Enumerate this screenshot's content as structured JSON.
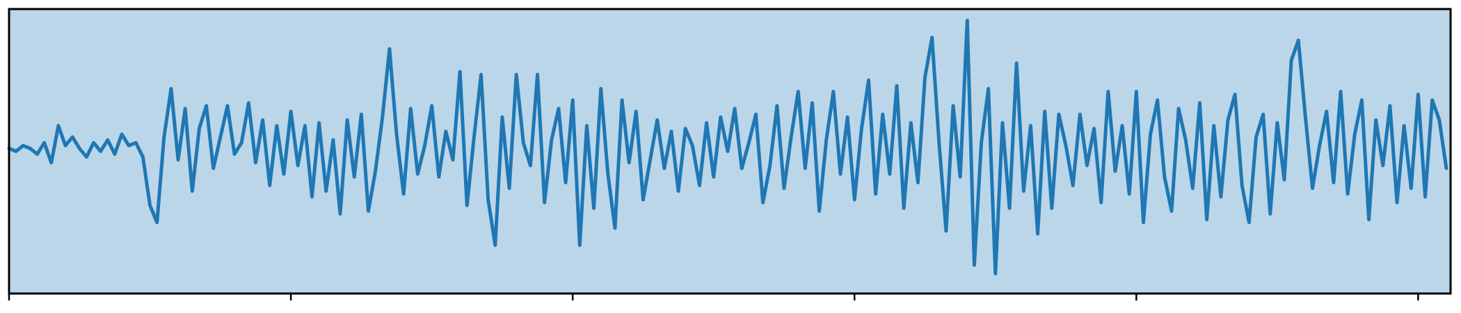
{
  "chart_data": {
    "type": "line",
    "x": [
      0,
      5,
      10,
      15,
      20,
      25,
      30,
      35,
      40,
      45,
      50,
      55,
      60,
      65,
      70,
      75,
      80,
      85,
      90,
      95,
      100,
      105,
      110,
      115,
      120,
      125,
      130,
      135,
      140,
      145,
      150,
      155,
      160,
      165,
      170,
      175,
      180,
      185,
      190,
      195,
      200,
      205,
      210,
      215,
      220,
      225,
      230,
      235,
      240,
      245,
      250,
      255,
      260,
      265,
      270,
      275,
      280,
      285,
      290,
      295,
      300,
      305,
      310,
      315,
      320,
      325,
      330,
      335,
      340,
      345,
      350,
      355,
      360,
      365,
      370,
      375,
      380,
      385,
      390,
      395,
      400,
      405,
      410,
      415,
      420,
      425,
      430,
      435,
      440,
      445,
      450,
      455,
      460,
      465,
      470,
      475,
      480,
      485,
      490,
      495,
      500,
      505,
      510,
      515,
      520,
      525,
      530,
      535,
      540,
      545,
      550,
      555,
      560,
      565,
      570,
      575,
      580,
      585,
      590,
      595,
      600,
      605,
      610,
      615,
      620,
      625,
      630,
      635,
      640,
      645,
      650,
      655,
      660,
      665,
      670,
      675,
      680,
      685,
      690,
      695,
      700,
      705,
      710,
      715,
      720,
      725,
      730,
      735,
      740,
      745,
      750,
      755,
      760,
      765,
      770,
      775,
      780,
      785,
      790,
      795,
      800,
      805,
      810,
      815,
      820,
      825,
      830,
      835,
      840,
      845,
      850,
      855,
      860,
      865,
      870,
      875,
      880,
      885,
      890,
      895,
      900,
      905,
      910,
      915,
      920,
      925,
      930,
      935,
      940,
      945,
      950,
      955,
      960,
      965,
      970,
      975,
      980,
      985,
      990,
      995,
      1000,
      1005,
      1010,
      1015,
      1020
    ],
    "series": [
      {
        "color": "#1f77b4",
        "values": [
          0.1,
          0.0,
          0.2,
          0.1,
          -0.1,
          0.3,
          -0.4,
          0.9,
          0.2,
          0.5,
          0.1,
          -0.2,
          0.3,
          0.0,
          0.4,
          -0.1,
          0.6,
          0.2,
          0.3,
          -0.2,
          -1.9,
          -2.5,
          0.5,
          2.2,
          -0.3,
          1.5,
          -1.4,
          0.8,
          1.6,
          -0.6,
          0.5,
          1.6,
          -0.1,
          0.3,
          1.7,
          -0.4,
          1.1,
          -1.2,
          0.9,
          -0.8,
          1.4,
          -0.5,
          0.9,
          -1.6,
          1.0,
          -1.4,
          0.4,
          -2.2,
          1.1,
          -0.9,
          1.3,
          -2.1,
          -0.7,
          1.2,
          3.6,
          0.6,
          -1.5,
          1.5,
          -0.8,
          0.2,
          1.6,
          -0.9,
          0.7,
          -0.3,
          2.8,
          -1.9,
          0.5,
          2.7,
          -1.7,
          -3.3,
          1.2,
          -1.3,
          2.7,
          0.3,
          -0.5,
          2.7,
          -1.8,
          0.4,
          1.5,
          -1.1,
          1.8,
          -3.3,
          0.9,
          -2.0,
          2.2,
          -0.8,
          -2.7,
          1.8,
          -0.4,
          1.4,
          -1.7,
          -0.3,
          1.1,
          -0.6,
          0.7,
          -1.4,
          0.8,
          0.2,
          -1.2,
          1.0,
          -0.9,
          1.2,
          0.0,
          1.5,
          -0.6,
          0.3,
          1.3,
          -1.8,
          -0.5,
          1.6,
          -1.3,
          0.5,
          2.1,
          -0.6,
          1.7,
          -2.1,
          0.4,
          2.1,
          -0.8,
          1.2,
          -1.7,
          0.8,
          2.5,
          -1.5,
          1.3,
          -0.8,
          2.3,
          -2.0,
          1.0,
          -1.1,
          2.6,
          4.0,
          0.3,
          -2.8,
          1.6,
          -0.9,
          4.6,
          -4.0,
          0.3,
          2.2,
          -4.3,
          1.0,
          -2.0,
          3.1,
          -1.4,
          0.9,
          -2.9,
          1.4,
          -2.0,
          1.3,
          0.2,
          -1.2,
          1.3,
          -0.5,
          0.8,
          -1.8,
          2.1,
          -0.7,
          0.9,
          -1.5,
          2.1,
          -2.5,
          0.6,
          1.8,
          -0.9,
          -2.1,
          1.5,
          0.4,
          -1.3,
          1.7,
          -2.4,
          0.9,
          -1.6,
          1.1,
          2.0,
          -1.2,
          -2.5,
          0.5,
          1.3,
          -2.2,
          1.0,
          -1.0,
          3.2,
          3.9,
          1.2,
          -1.3,
          0.2,
          1.4,
          -1.1,
          2.1,
          -1.5,
          0.6,
          1.8,
          -2.4,
          1.1,
          -0.5,
          1.6,
          -1.8,
          0.9,
          -1.3,
          2.0,
          -1.6,
          1.8,
          1.1,
          -0.6
        ]
      }
    ],
    "xlim": [
      0,
      1023
    ],
    "xticks": [
      0,
      200,
      400,
      600,
      800,
      1000
    ],
    "ylim": [
      -5,
      5
    ],
    "facecolor": "#bbd6e9"
  }
}
